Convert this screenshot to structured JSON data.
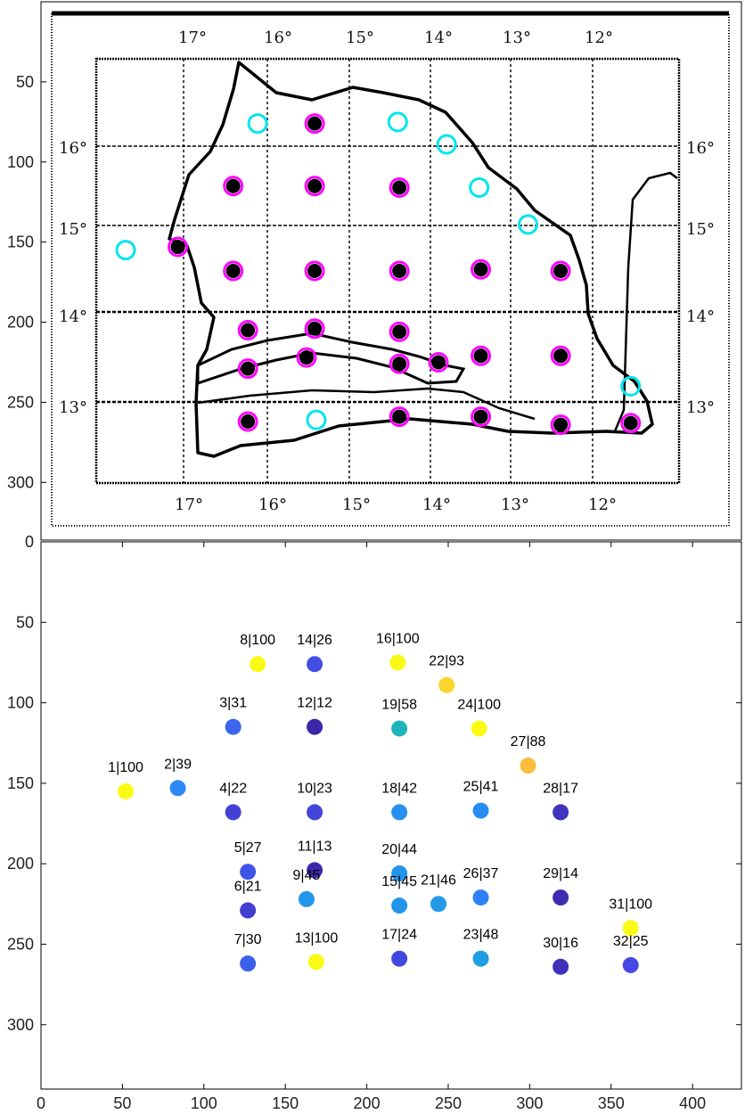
{
  "chart_data": [
    {
      "type": "image",
      "description_of_content": "scanned map with station markers",
      "xlim": [
        0,
        430
      ],
      "ylim": [
        0,
        340
      ],
      "yticks": [
        50,
        100,
        150,
        200,
        250,
        300
      ],
      "y_zero_label": "0",
      "degree_labels_top": [
        "17°",
        "16°",
        "15°",
        "14°",
        "13°",
        "12°"
      ],
      "degree_labels_bottom": [
        "17°",
        "16°",
        "15°",
        "14°",
        "13°",
        "12°"
      ],
      "degree_labels_left": [
        "16°",
        "15°",
        "14°",
        "13°"
      ],
      "degree_labels_right": [
        "16°",
        "15°",
        "14°",
        "13°"
      ],
      "markers": [
        {
          "x": 52,
          "y": 155,
          "style": "cyan"
        },
        {
          "x": 84,
          "y": 153,
          "style": "magenta"
        },
        {
          "x": 118,
          "y": 115,
          "style": "magenta"
        },
        {
          "x": 118,
          "y": 168,
          "style": "magenta"
        },
        {
          "x": 127,
          "y": 205,
          "style": "magenta"
        },
        {
          "x": 127,
          "y": 229,
          "style": "magenta"
        },
        {
          "x": 127,
          "y": 262,
          "style": "magenta"
        },
        {
          "x": 133,
          "y": 76,
          "style": "cyan"
        },
        {
          "x": 163,
          "y": 222,
          "style": "magenta"
        },
        {
          "x": 168,
          "y": 168,
          "style": "magenta"
        },
        {
          "x": 168,
          "y": 204,
          "style": "magenta"
        },
        {
          "x": 168,
          "y": 115,
          "style": "magenta"
        },
        {
          "x": 169,
          "y": 261,
          "style": "cyan"
        },
        {
          "x": 168,
          "y": 76,
          "style": "magenta"
        },
        {
          "x": 220,
          "y": 226,
          "style": "magenta"
        },
        {
          "x": 219,
          "y": 75,
          "style": "cyan"
        },
        {
          "x": 220,
          "y": 259,
          "style": "magenta"
        },
        {
          "x": 220,
          "y": 168,
          "style": "magenta"
        },
        {
          "x": 220,
          "y": 116,
          "style": "magenta"
        },
        {
          "x": 220,
          "y": 206,
          "style": "magenta"
        },
        {
          "x": 244,
          "y": 225,
          "style": "magenta"
        },
        {
          "x": 249,
          "y": 89,
          "style": "cyan"
        },
        {
          "x": 270,
          "y": 259,
          "style": "magenta"
        },
        {
          "x": 269,
          "y": 116,
          "style": "cyan"
        },
        {
          "x": 270,
          "y": 167,
          "style": "magenta"
        },
        {
          "x": 270,
          "y": 221,
          "style": "magenta"
        },
        {
          "x": 299,
          "y": 139,
          "style": "cyan"
        },
        {
          "x": 319,
          "y": 168,
          "style": "magenta"
        },
        {
          "x": 319,
          "y": 221,
          "style": "magenta"
        },
        {
          "x": 319,
          "y": 264,
          "style": "magenta"
        },
        {
          "x": 362,
          "y": 240,
          "style": "cyan"
        },
        {
          "x": 362,
          "y": 263,
          "style": "magenta"
        }
      ]
    },
    {
      "type": "scatter",
      "xlim": [
        0,
        430
      ],
      "ylim": [
        0,
        340
      ],
      "xticks": [
        0,
        50,
        100,
        150,
        200,
        250,
        300,
        350,
        400
      ],
      "yticks": [
        50,
        100,
        150,
        200,
        250,
        300
      ],
      "points": [
        {
          "id": 1,
          "label": "1|100",
          "x": 52,
          "y": 155,
          "value": 100
        },
        {
          "id": 2,
          "label": "2|39",
          "x": 84,
          "y": 153,
          "value": 39
        },
        {
          "id": 3,
          "label": "3|31",
          "x": 118,
          "y": 115,
          "value": 31
        },
        {
          "id": 4,
          "label": "4|22",
          "x": 118,
          "y": 168,
          "value": 22
        },
        {
          "id": 5,
          "label": "5|27",
          "x": 127,
          "y": 205,
          "value": 27
        },
        {
          "id": 6,
          "label": "6|21",
          "x": 127,
          "y": 229,
          "value": 21
        },
        {
          "id": 7,
          "label": "7|30",
          "x": 127,
          "y": 262,
          "value": 30
        },
        {
          "id": 8,
          "label": "8|100",
          "x": 133,
          "y": 76,
          "value": 100
        },
        {
          "id": 9,
          "label": "9|45",
          "x": 163,
          "y": 222,
          "value": 45
        },
        {
          "id": 10,
          "label": "10|23",
          "x": 168,
          "y": 168,
          "value": 23
        },
        {
          "id": 11,
          "label": "11|13",
          "x": 168,
          "y": 204,
          "value": 13
        },
        {
          "id": 12,
          "label": "12|12",
          "x": 168,
          "y": 115,
          "value": 12
        },
        {
          "id": 13,
          "label": "13|100",
          "x": 169,
          "y": 261,
          "value": 100
        },
        {
          "id": 14,
          "label": "14|26",
          "x": 168,
          "y": 76,
          "value": 26
        },
        {
          "id": 15,
          "label": "15|45",
          "x": 220,
          "y": 226,
          "value": 45
        },
        {
          "id": 16,
          "label": "16|100",
          "x": 219,
          "y": 75,
          "value": 100
        },
        {
          "id": 17,
          "label": "17|24",
          "x": 220,
          "y": 259,
          "value": 24
        },
        {
          "id": 18,
          "label": "18|42",
          "x": 220,
          "y": 168,
          "value": 42
        },
        {
          "id": 19,
          "label": "19|58",
          "x": 220,
          "y": 116,
          "value": 58
        },
        {
          "id": 20,
          "label": "20|44",
          "x": 220,
          "y": 206,
          "value": 44
        },
        {
          "id": 21,
          "label": "21|46",
          "x": 244,
          "y": 225,
          "value": 46
        },
        {
          "id": 22,
          "label": "22|93",
          "x": 249,
          "y": 89,
          "value": 93
        },
        {
          "id": 23,
          "label": "23|48",
          "x": 270,
          "y": 259,
          "value": 48
        },
        {
          "id": 24,
          "label": "24|100",
          "x": 269,
          "y": 116,
          "value": 100
        },
        {
          "id": 25,
          "label": "25|41",
          "x": 270,
          "y": 167,
          "value": 41
        },
        {
          "id": 26,
          "label": "26|37",
          "x": 270,
          "y": 221,
          "value": 37
        },
        {
          "id": 27,
          "label": "27|88",
          "x": 299,
          "y": 139,
          "value": 88
        },
        {
          "id": 28,
          "label": "28|17",
          "x": 319,
          "y": 168,
          "value": 17
        },
        {
          "id": 29,
          "label": "29|14",
          "x": 319,
          "y": 221,
          "value": 14
        },
        {
          "id": 30,
          "label": "30|16",
          "x": 319,
          "y": 264,
          "value": 16
        },
        {
          "id": 31,
          "label": "31|100",
          "x": 362,
          "y": 240,
          "value": 100
        },
        {
          "id": 32,
          "label": "32|25",
          "x": 362,
          "y": 263,
          "value": 25
        }
      ]
    }
  ]
}
